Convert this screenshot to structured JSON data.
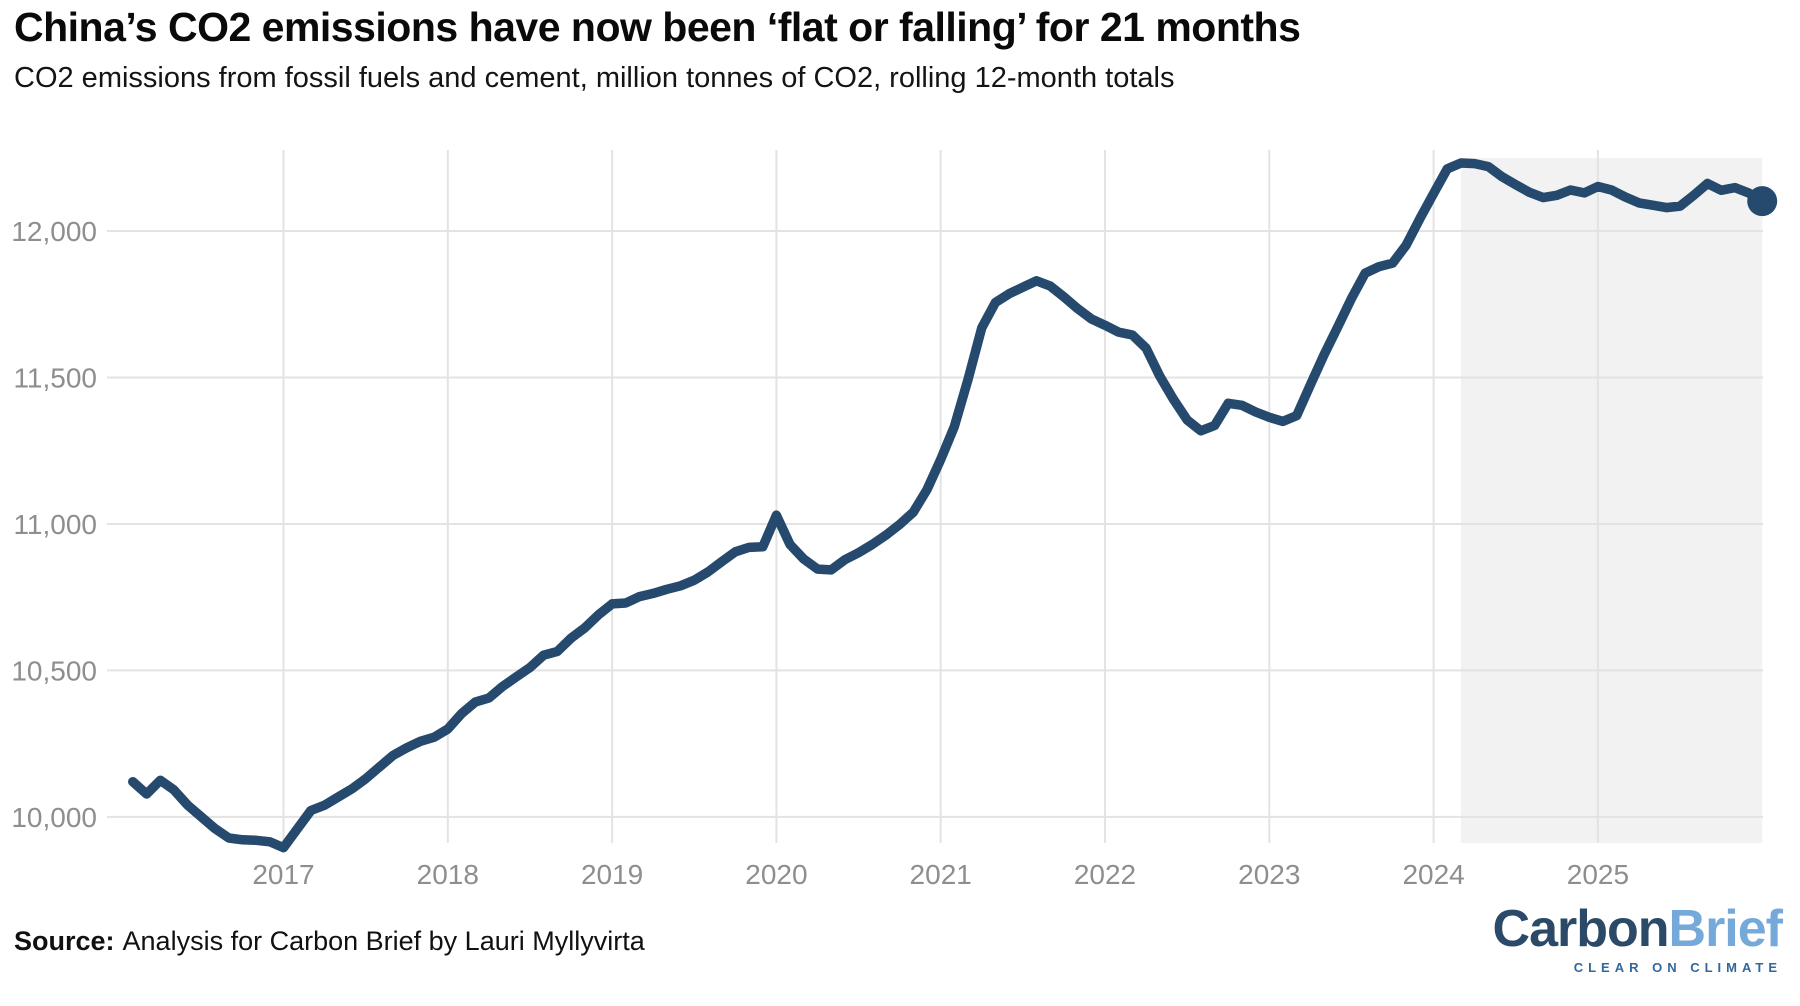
{
  "header": {
    "title": "China’s CO2 emissions have now been ‘flat or falling’ for 21 months",
    "subtitle": "CO2 emissions from fossil fuels and cement, million tonnes of CO2, rolling 12-month totals"
  },
  "footer": {
    "source_label": "Source:",
    "source_text": "Analysis for Carbon Brief by Lauri Myllyvirta",
    "logo": {
      "part1": "Carbon",
      "part2": "Brief",
      "tagline": "CLEAR ON CLIMATE"
    }
  },
  "chart_data": {
    "type": "line",
    "title": "China’s CO2 emissions have now been ‘flat or falling’ for 21 months",
    "subtitle": "CO2 emissions from fossil fuels and cement, million tonnes of CO2, rolling 12-month totals",
    "xlabel": "",
    "ylabel": "",
    "grid": true,
    "legend": "none",
    "x_ticks": [
      2017,
      2018,
      2019,
      2020,
      2021,
      2022,
      2023,
      2024,
      2025
    ],
    "x_tick_labels": [
      "2017",
      "2018",
      "2019",
      "2020",
      "2021",
      "2022",
      "2023",
      "2024",
      "2025"
    ],
    "y_ticks": [
      10000,
      10500,
      11000,
      11500,
      12000
    ],
    "y_tick_labels": [
      "10,000",
      "10,500",
      "11,000",
      "11,500",
      "12,000"
    ],
    "xlim": [
      2015.93,
      2026.0
    ],
    "ylim": [
      9880,
      12280
    ],
    "highlight_band": {
      "from": 2024.167,
      "to": 2026.0
    },
    "end_marker": true,
    "colors": {
      "line": "#254a6e",
      "marker": "#254a6e",
      "grid": "#e3e3e3",
      "band": "#f2f2f2",
      "tick_text": "#8e8e8e"
    },
    "series": [
      {
        "name": "China CO2 emissions, rolling 12-month total (MtCO2)",
        "points": [
          [
            2016.083,
            10120
          ],
          [
            2016.167,
            10078
          ],
          [
            2016.25,
            10125
          ],
          [
            2016.333,
            10092
          ],
          [
            2016.417,
            10040
          ],
          [
            2016.5,
            10000
          ],
          [
            2016.583,
            9960
          ],
          [
            2016.667,
            9928
          ],
          [
            2016.75,
            9922
          ],
          [
            2016.833,
            9920
          ],
          [
            2016.917,
            9915
          ],
          [
            2017.0,
            9895
          ],
          [
            2017.083,
            9958
          ],
          [
            2017.167,
            10022
          ],
          [
            2017.25,
            10040
          ],
          [
            2017.333,
            10068
          ],
          [
            2017.417,
            10096
          ],
          [
            2017.5,
            10130
          ],
          [
            2017.583,
            10170
          ],
          [
            2017.667,
            10210
          ],
          [
            2017.75,
            10236
          ],
          [
            2017.833,
            10258
          ],
          [
            2017.917,
            10272
          ],
          [
            2018.0,
            10300
          ],
          [
            2018.083,
            10352
          ],
          [
            2018.167,
            10392
          ],
          [
            2018.25,
            10406
          ],
          [
            2018.333,
            10445
          ],
          [
            2018.417,
            10478
          ],
          [
            2018.5,
            10510
          ],
          [
            2018.583,
            10552
          ],
          [
            2018.667,
            10565
          ],
          [
            2018.75,
            10610
          ],
          [
            2018.833,
            10645
          ],
          [
            2018.917,
            10690
          ],
          [
            2019.0,
            10727
          ],
          [
            2019.083,
            10730
          ],
          [
            2019.167,
            10752
          ],
          [
            2019.25,
            10763
          ],
          [
            2019.333,
            10777
          ],
          [
            2019.417,
            10789
          ],
          [
            2019.5,
            10808
          ],
          [
            2019.583,
            10836
          ],
          [
            2019.667,
            10871
          ],
          [
            2019.75,
            10905
          ],
          [
            2019.833,
            10920
          ],
          [
            2019.917,
            10922
          ],
          [
            2020.0,
            11030
          ],
          [
            2020.083,
            10930
          ],
          [
            2020.167,
            10880
          ],
          [
            2020.25,
            10846
          ],
          [
            2020.333,
            10843
          ],
          [
            2020.417,
            10878
          ],
          [
            2020.5,
            10902
          ],
          [
            2020.583,
            10930
          ],
          [
            2020.667,
            10962
          ],
          [
            2020.75,
            10998
          ],
          [
            2020.833,
            11040
          ],
          [
            2020.917,
            11118
          ],
          [
            2021.0,
            11220
          ],
          [
            2021.083,
            11332
          ],
          [
            2021.167,
            11494
          ],
          [
            2021.25,
            11670
          ],
          [
            2021.333,
            11756
          ],
          [
            2021.417,
            11786
          ],
          [
            2021.5,
            11808
          ],
          [
            2021.583,
            11830
          ],
          [
            2021.667,
            11812
          ],
          [
            2021.75,
            11775
          ],
          [
            2021.833,
            11735
          ],
          [
            2021.917,
            11700
          ],
          [
            2022.0,
            11678
          ],
          [
            2022.083,
            11655
          ],
          [
            2022.167,
            11645
          ],
          [
            2022.25,
            11600
          ],
          [
            2022.333,
            11505
          ],
          [
            2022.417,
            11425
          ],
          [
            2022.5,
            11355
          ],
          [
            2022.583,
            11318
          ],
          [
            2022.667,
            11336
          ],
          [
            2022.75,
            11412
          ],
          [
            2022.833,
            11405
          ],
          [
            2022.917,
            11382
          ],
          [
            2023.0,
            11364
          ],
          [
            2023.083,
            11350
          ],
          [
            2023.167,
            11370
          ],
          [
            2023.25,
            11475
          ],
          [
            2023.333,
            11577
          ],
          [
            2023.417,
            11673
          ],
          [
            2023.5,
            11770
          ],
          [
            2023.583,
            11856
          ],
          [
            2023.667,
            11878
          ],
          [
            2023.75,
            11890
          ],
          [
            2023.833,
            11952
          ],
          [
            2023.917,
            12043
          ],
          [
            2024.0,
            12128
          ],
          [
            2024.083,
            12212
          ],
          [
            2024.167,
            12232
          ],
          [
            2024.25,
            12230
          ],
          [
            2024.333,
            12220
          ],
          [
            2024.417,
            12185
          ],
          [
            2024.5,
            12158
          ],
          [
            2024.583,
            12132
          ],
          [
            2024.667,
            12114
          ],
          [
            2024.75,
            12122
          ],
          [
            2024.833,
            12140
          ],
          [
            2024.917,
            12130
          ],
          [
            2025.0,
            12152
          ],
          [
            2025.083,
            12140
          ],
          [
            2025.167,
            12116
          ],
          [
            2025.25,
            12096
          ],
          [
            2025.333,
            12088
          ],
          [
            2025.417,
            12080
          ],
          [
            2025.5,
            12085
          ],
          [
            2025.583,
            12122
          ],
          [
            2025.667,
            12162
          ],
          [
            2025.75,
            12139
          ],
          [
            2025.833,
            12148
          ],
          [
            2025.917,
            12130
          ],
          [
            2026.0,
            12102
          ]
        ]
      }
    ]
  }
}
